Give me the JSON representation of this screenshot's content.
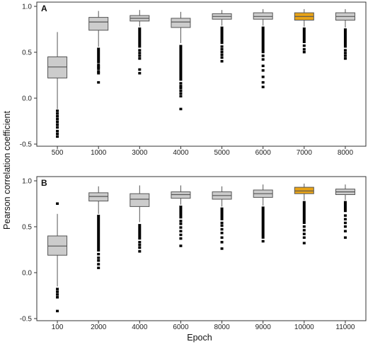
{
  "figure": {
    "ylabel": "Pearson correlation coefficient",
    "xlabel": "Epoch"
  },
  "colors": {
    "box_default": "#cccccc",
    "box_highlight": "#e8a317",
    "outline": "#555555",
    "points": "#000000"
  },
  "chart_data": [
    {
      "type": "box",
      "panel": "A",
      "ylim": [
        -0.5,
        1.0
      ],
      "yticks": [
        -0.5,
        0.0,
        0.5,
        1.0
      ],
      "ytick_labels": [
        "-0.5",
        "0.0",
        "0.5",
        "1.0"
      ],
      "categories": [
        "500",
        "1000",
        "3000",
        "4000",
        "5000",
        "6000",
        "7000",
        "8000"
      ],
      "highlight": "7000",
      "boxes": [
        {
          "min": -0.12,
          "q1": 0.22,
          "median": 0.34,
          "q3": 0.45,
          "max": 0.72,
          "outliers": [
            -0.14,
            -0.17,
            -0.2,
            -0.23,
            -0.26,
            -0.29,
            -0.32,
            -0.36,
            -0.39,
            -0.42
          ]
        },
        {
          "min": 0.56,
          "q1": 0.74,
          "median": 0.83,
          "q3": 0.88,
          "max": 0.95,
          "outliers": [
            0.17,
            0.27,
            0.29,
            0.32,
            0.34,
            0.36
          ],
          "dense": [
            0.38,
            0.55
          ]
        },
        {
          "min": 0.78,
          "q1": 0.84,
          "median": 0.87,
          "q3": 0.9,
          "max": 0.96,
          "outliers": [
            0.27,
            0.31,
            0.43,
            0.46,
            0.49,
            0.52
          ],
          "dense": [
            0.55,
            0.77
          ]
        },
        {
          "min": 0.6,
          "q1": 0.77,
          "median": 0.83,
          "q3": 0.87,
          "max": 0.94,
          "outliers": [
            -0.12,
            0.02,
            0.05,
            0.08,
            0.11,
            0.13,
            0.16
          ],
          "dense": [
            0.19,
            0.58
          ]
        },
        {
          "min": 0.79,
          "q1": 0.86,
          "median": 0.89,
          "q3": 0.92,
          "max": 0.96,
          "outliers": [
            0.4,
            0.44,
            0.47,
            0.5,
            0.53,
            0.56
          ],
          "dense": [
            0.59,
            0.78
          ]
        },
        {
          "min": 0.79,
          "q1": 0.86,
          "median": 0.89,
          "q3": 0.93,
          "max": 0.97,
          "outliers": [
            0.12,
            0.17,
            0.23,
            0.3,
            0.35,
            0.42,
            0.46
          ],
          "dense": [
            0.49,
            0.78
          ]
        },
        {
          "min": 0.78,
          "q1": 0.85,
          "median": 0.89,
          "q3": 0.93,
          "max": 0.97,
          "outliers": [
            0.5,
            0.53,
            0.57
          ],
          "dense": [
            0.6,
            0.77
          ]
        },
        {
          "min": 0.77,
          "q1": 0.85,
          "median": 0.89,
          "q3": 0.93,
          "max": 0.97,
          "outliers": [
            0.43,
            0.46,
            0.49,
            0.52
          ],
          "dense": [
            0.55,
            0.76
          ]
        }
      ]
    },
    {
      "type": "box",
      "panel": "B",
      "ylim": [
        -0.5,
        1.0
      ],
      "yticks": [
        -0.5,
        0.0,
        0.5,
        1.0
      ],
      "ytick_labels": [
        "-0.5",
        "0.0",
        "0.5",
        "1.0"
      ],
      "categories": [
        "100",
        "2000",
        "4000",
        "6000",
        "8000",
        "9000",
        "10000",
        "11000"
      ],
      "highlight": "10000",
      "boxes": [
        {
          "min": -0.15,
          "q1": 0.19,
          "median": 0.29,
          "q3": 0.4,
          "max": 0.64,
          "outliers": [
            0.75,
            -0.18,
            -0.21,
            -0.24,
            -0.27,
            -0.42
          ]
        },
        {
          "min": 0.64,
          "q1": 0.78,
          "median": 0.83,
          "q3": 0.87,
          "max": 0.94,
          "outliers": [
            0.05,
            0.09,
            0.13,
            0.16,
            0.2
          ],
          "dense": [
            0.23,
            0.63
          ]
        },
        {
          "min": 0.55,
          "q1": 0.72,
          "median": 0.8,
          "q3": 0.86,
          "max": 0.95,
          "outliers": [
            0.23,
            0.27,
            0.3,
            0.33
          ],
          "dense": [
            0.36,
            0.53
          ]
        },
        {
          "min": 0.74,
          "q1": 0.81,
          "median": 0.85,
          "q3": 0.88,
          "max": 0.95,
          "outliers": [
            0.29,
            0.37,
            0.41,
            0.45,
            0.49,
            0.53,
            0.56
          ],
          "dense": [
            0.59,
            0.73
          ]
        },
        {
          "min": 0.72,
          "q1": 0.8,
          "median": 0.84,
          "q3": 0.88,
          "max": 0.94,
          "outliers": [
            0.26,
            0.33,
            0.38,
            0.43,
            0.47,
            0.51,
            0.54
          ],
          "dense": [
            0.57,
            0.71
          ]
        },
        {
          "min": 0.73,
          "q1": 0.82,
          "median": 0.86,
          "q3": 0.9,
          "max": 0.96,
          "outliers": [
            0.34
          ],
          "dense": [
            0.37,
            0.72
          ]
        },
        {
          "min": 0.79,
          "q1": 0.86,
          "median": 0.89,
          "q3": 0.93,
          "max": 0.97,
          "outliers": [
            0.32,
            0.38,
            0.42,
            0.46,
            0.5
          ],
          "dense": [
            0.53,
            0.78
          ]
        },
        {
          "min": 0.79,
          "q1": 0.85,
          "median": 0.88,
          "q3": 0.91,
          "max": 0.96,
          "outliers": [
            0.38,
            0.45,
            0.5,
            0.54,
            0.58,
            0.62
          ],
          "dense": [
            0.66,
            0.78
          ]
        }
      ]
    }
  ]
}
